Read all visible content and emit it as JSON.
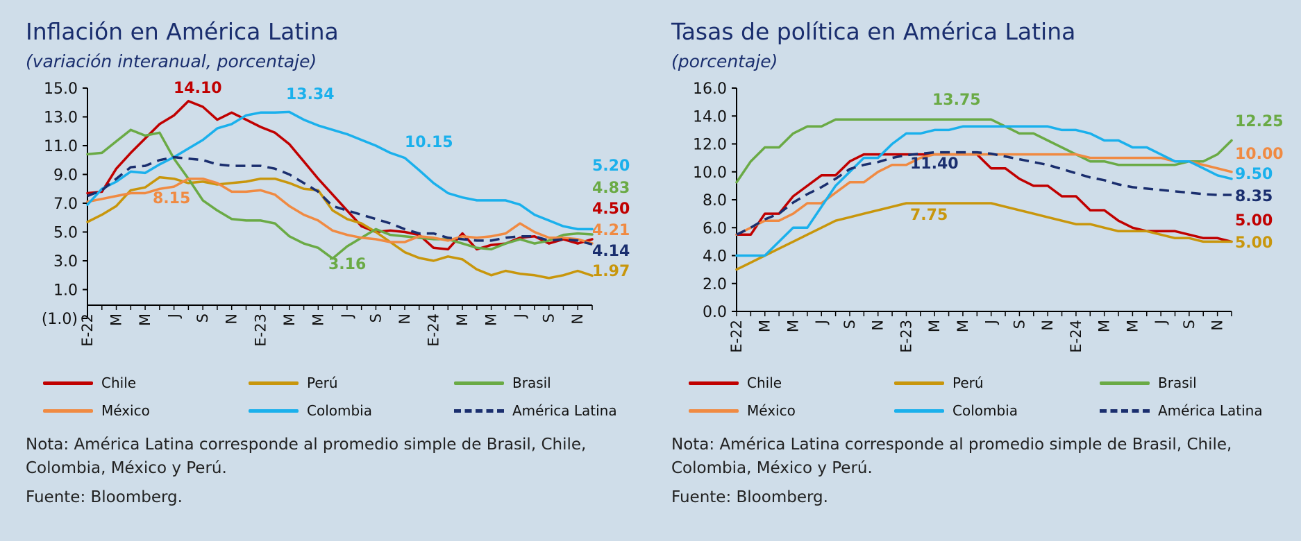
{
  "left_panel": {
    "title": "Inflación en América Latina",
    "subtitle": "(variación interanual, porcentaje)",
    "note": "Nota: América Latina corresponde al promedio simple de Brasil, Chile, Colombia, México y Perú.",
    "source": "Fuente: Bloomberg."
  },
  "right_panel": {
    "title": "Tasas de política en América Latina",
    "subtitle": "(porcentaje)",
    "note": "Nota: América Latina corresponde al promedio simple de Brasil, Chile, Colombia, México y Perú.",
    "source": "Fuente: Bloomberg."
  },
  "legend": [
    {
      "name": "Chile",
      "color": "#c00000",
      "dashed": false
    },
    {
      "name": "Perú",
      "color": "#c8960c",
      "dashed": false
    },
    {
      "name": "Brasil",
      "color": "#6aaa45",
      "dashed": false
    },
    {
      "name": "México",
      "color": "#f08a42",
      "dashed": false
    },
    {
      "name": "Colombia",
      "color": "#1ab0ec",
      "dashed": false
    },
    {
      "name": "América Latina",
      "color": "#1a2e6e",
      "dashed": true
    }
  ],
  "chart_data": [
    {
      "type": "line",
      "title": "Inflación en América Latina",
      "subtitle": "(variación interanual, porcentaje)",
      "x_tick_labels": [
        "E-22",
        "M",
        "M",
        "J",
        "S",
        "N",
        "E-23",
        "M",
        "M",
        "J",
        "S",
        "N",
        "E-24",
        "M",
        "M",
        "J",
        "S",
        "N"
      ],
      "x_tick_positions": [
        0,
        2,
        4,
        6,
        8,
        10,
        12,
        14,
        16,
        18,
        20,
        22,
        24,
        26,
        28,
        30,
        32,
        34
      ],
      "n_points": 36,
      "ylim": [
        -1,
        15
      ],
      "y_ticks": [
        -1,
        1,
        3,
        5,
        7,
        9,
        11,
        13,
        15
      ],
      "y_tick_labels": [
        "(1.0)",
        "1.0",
        "3.0",
        "5.0",
        "7.0",
        "9.0",
        "11.0",
        "13.0",
        "15.0"
      ],
      "series": [
        {
          "name": "Chile",
          "color": "#c00000",
          "values": [
            7.7,
            7.8,
            9.4,
            10.5,
            11.5,
            12.5,
            13.1,
            14.1,
            13.7,
            12.8,
            13.3,
            12.8,
            12.3,
            11.9,
            11.1,
            9.9,
            8.7,
            7.6,
            6.5,
            5.4,
            5.0,
            5.1,
            5.0,
            4.8,
            3.9,
            3.8,
            4.9,
            3.8,
            4.1,
            4.2,
            4.6,
            4.7,
            4.2,
            4.5,
            4.2,
            4.5
          ]
        },
        {
          "name": "Perú",
          "color": "#c8960c",
          "values": [
            5.7,
            6.2,
            6.8,
            7.9,
            8.1,
            8.8,
            8.7,
            8.4,
            8.5,
            8.3,
            8.4,
            8.5,
            8.7,
            8.7,
            8.4,
            8.0,
            7.9,
            6.5,
            5.9,
            5.6,
            5.0,
            4.3,
            3.6,
            3.2,
            3.0,
            3.3,
            3.1,
            2.4,
            2.0,
            2.3,
            2.1,
            2.0,
            1.8,
            2.0,
            2.3,
            1.97
          ]
        },
        {
          "name": "Brasil",
          "color": "#6aaa45",
          "values": [
            10.4,
            10.5,
            11.3,
            12.1,
            11.7,
            11.9,
            10.1,
            8.7,
            7.2,
            6.5,
            5.9,
            5.8,
            5.8,
            5.6,
            4.7,
            4.2,
            3.9,
            3.16,
            4.0,
            4.6,
            5.2,
            4.8,
            4.7,
            4.6,
            4.5,
            4.5,
            4.2,
            3.9,
            3.8,
            4.2,
            4.5,
            4.2,
            4.4,
            4.8,
            4.9,
            4.83
          ]
        },
        {
          "name": "México",
          "color": "#f08a42",
          "values": [
            7.1,
            7.3,
            7.5,
            7.7,
            7.7,
            8.0,
            8.15,
            8.7,
            8.7,
            8.4,
            7.8,
            7.8,
            7.9,
            7.6,
            6.8,
            6.2,
            5.8,
            5.1,
            4.8,
            4.6,
            4.5,
            4.3,
            4.3,
            4.7,
            4.6,
            4.4,
            4.7,
            4.6,
            4.7,
            4.9,
            5.6,
            5.0,
            4.6,
            4.6,
            4.5,
            4.21
          ]
        },
        {
          "name": "Colombia",
          "color": "#1ab0ec",
          "values": [
            6.9,
            8.0,
            8.5,
            9.2,
            9.1,
            9.7,
            10.2,
            10.8,
            11.4,
            12.2,
            12.5,
            13.1,
            13.3,
            13.3,
            13.34,
            12.8,
            12.4,
            12.1,
            11.8,
            11.4,
            11.0,
            10.5,
            10.15,
            9.3,
            8.4,
            7.7,
            7.4,
            7.2,
            7.2,
            7.2,
            6.9,
            6.2,
            5.8,
            5.4,
            5.2,
            5.2
          ]
        },
        {
          "name": "América Latina",
          "color": "#1a2e6e",
          "dashed": true,
          "values": [
            7.5,
            7.9,
            8.7,
            9.5,
            9.6,
            10.0,
            10.2,
            10.1,
            10.0,
            9.7,
            9.6,
            9.6,
            9.6,
            9.4,
            9.0,
            8.4,
            7.8,
            6.8,
            6.5,
            6.2,
            5.9,
            5.6,
            5.2,
            4.9,
            4.9,
            4.6,
            4.5,
            4.4,
            4.4,
            4.6,
            4.7,
            4.7,
            4.4,
            4.5,
            4.4,
            4.14
          ]
        }
      ],
      "annotations": [
        {
          "text": "14.10",
          "color": "#c00000"
        },
        {
          "text": "13.34",
          "color": "#1ab0ec"
        },
        {
          "text": "10.15",
          "color": "#1ab0ec"
        },
        {
          "text": "8.15",
          "color": "#f08a42"
        },
        {
          "text": "3.16",
          "color": "#6aaa45"
        },
        {
          "text": "5.20",
          "color": "#1ab0ec"
        },
        {
          "text": "4.83",
          "color": "#6aaa45"
        },
        {
          "text": "4.50",
          "color": "#c00000"
        },
        {
          "text": "4.21",
          "color": "#f08a42"
        },
        {
          "text": "4.14",
          "color": "#1a2e6e"
        },
        {
          "text": "1.97",
          "color": "#c8960c"
        }
      ],
      "grid": false,
      "legend_position": "bottom"
    },
    {
      "type": "line",
      "title": "Tasas de política en América Latina",
      "subtitle": "(porcentaje)",
      "x_tick_labels": [
        "E-22",
        "M",
        "M",
        "J",
        "S",
        "N",
        "E-23",
        "M",
        "M",
        "J",
        "S",
        "N",
        "E-24",
        "M",
        "M",
        "J",
        "S",
        "N"
      ],
      "x_tick_positions": [
        0,
        2,
        4,
        6,
        8,
        10,
        12,
        14,
        16,
        18,
        20,
        22,
        24,
        26,
        28,
        30,
        32,
        34
      ],
      "n_points": 36,
      "ylim": [
        0,
        16
      ],
      "y_ticks": [
        0,
        2,
        4,
        6,
        8,
        10,
        12,
        14,
        16
      ],
      "y_tick_labels": [
        "0.0",
        "2.0",
        "4.0",
        "6.0",
        "8.0",
        "10.0",
        "12.0",
        "14.0",
        "16.0"
      ],
      "series": [
        {
          "name": "Chile",
          "color": "#c00000",
          "values": [
            5.5,
            5.5,
            7.0,
            7.0,
            8.25,
            9.0,
            9.75,
            9.75,
            10.75,
            11.25,
            11.25,
            11.25,
            11.25,
            11.25,
            11.25,
            11.25,
            11.25,
            11.25,
            10.25,
            10.25,
            9.5,
            9.0,
            9.0,
            8.25,
            8.25,
            7.25,
            7.25,
            6.5,
            6.0,
            5.75,
            5.75,
            5.75,
            5.5,
            5.25,
            5.25,
            5.0
          ]
        },
        {
          "name": "Perú",
          "color": "#c8960c",
          "values": [
            3.0,
            3.5,
            4.0,
            4.5,
            5.0,
            5.5,
            6.0,
            6.5,
            6.75,
            7.0,
            7.25,
            7.5,
            7.75,
            7.75,
            7.75,
            7.75,
            7.75,
            7.75,
            7.75,
            7.5,
            7.25,
            7.0,
            6.75,
            6.5,
            6.25,
            6.25,
            6.0,
            5.75,
            5.75,
            5.75,
            5.5,
            5.25,
            5.25,
            5.0,
            5.0,
            5.0
          ]
        },
        {
          "name": "Brasil",
          "color": "#6aaa45",
          "values": [
            9.25,
            10.75,
            11.75,
            11.75,
            12.75,
            13.25,
            13.25,
            13.75,
            13.75,
            13.75,
            13.75,
            13.75,
            13.75,
            13.75,
            13.75,
            13.75,
            13.75,
            13.75,
            13.75,
            13.25,
            12.75,
            12.75,
            12.25,
            11.75,
            11.25,
            10.75,
            10.75,
            10.5,
            10.5,
            10.5,
            10.5,
            10.5,
            10.75,
            10.75,
            11.25,
            12.25
          ]
        },
        {
          "name": "México",
          "color": "#f08a42",
          "values": [
            5.5,
            6.0,
            6.5,
            6.5,
            7.0,
            7.75,
            7.75,
            8.5,
            9.25,
            9.25,
            10.0,
            10.5,
            10.5,
            11.0,
            11.25,
            11.25,
            11.25,
            11.25,
            11.25,
            11.25,
            11.25,
            11.25,
            11.25,
            11.25,
            11.25,
            11.0,
            11.0,
            11.0,
            11.0,
            11.0,
            11.0,
            10.75,
            10.75,
            10.5,
            10.25,
            10.0
          ]
        },
        {
          "name": "Colombia",
          "color": "#1ab0ec",
          "values": [
            4.0,
            4.0,
            4.0,
            5.0,
            6.0,
            6.0,
            7.5,
            9.0,
            10.0,
            11.0,
            11.0,
            12.0,
            12.75,
            12.75,
            13.0,
            13.0,
            13.25,
            13.25,
            13.25,
            13.25,
            13.25,
            13.25,
            13.25,
            13.0,
            13.0,
            12.75,
            12.25,
            12.25,
            11.75,
            11.75,
            11.25,
            10.75,
            10.75,
            10.25,
            9.75,
            9.5
          ]
        },
        {
          "name": "América Latina",
          "color": "#1a2e6e",
          "dashed": true,
          "values": [
            5.5,
            6.0,
            6.6,
            7.0,
            7.8,
            8.4,
            8.9,
            9.5,
            10.2,
            10.5,
            10.7,
            11.0,
            11.2,
            11.3,
            11.4,
            11.4,
            11.4,
            11.4,
            11.3,
            11.1,
            10.9,
            10.7,
            10.5,
            10.2,
            9.9,
            9.6,
            9.4,
            9.1,
            8.9,
            8.8,
            8.7,
            8.6,
            8.5,
            8.4,
            8.35,
            8.35
          ]
        }
      ],
      "annotations": [
        {
          "text": "13.75",
          "color": "#6aaa45"
        },
        {
          "text": "11.40",
          "color": "#1a2e6e"
        },
        {
          "text": "7.75",
          "color": "#c8960c"
        },
        {
          "text": "12.25",
          "color": "#6aaa45"
        },
        {
          "text": "10.00",
          "color": "#f08a42"
        },
        {
          "text": "9.50",
          "color": "#1ab0ec"
        },
        {
          "text": "8.35",
          "color": "#1a2e6e"
        },
        {
          "text": "5.00",
          "color": "#c00000"
        },
        {
          "text": "5.00",
          "color": "#c8960c"
        }
      ],
      "grid": false,
      "legend_position": "bottom"
    }
  ]
}
